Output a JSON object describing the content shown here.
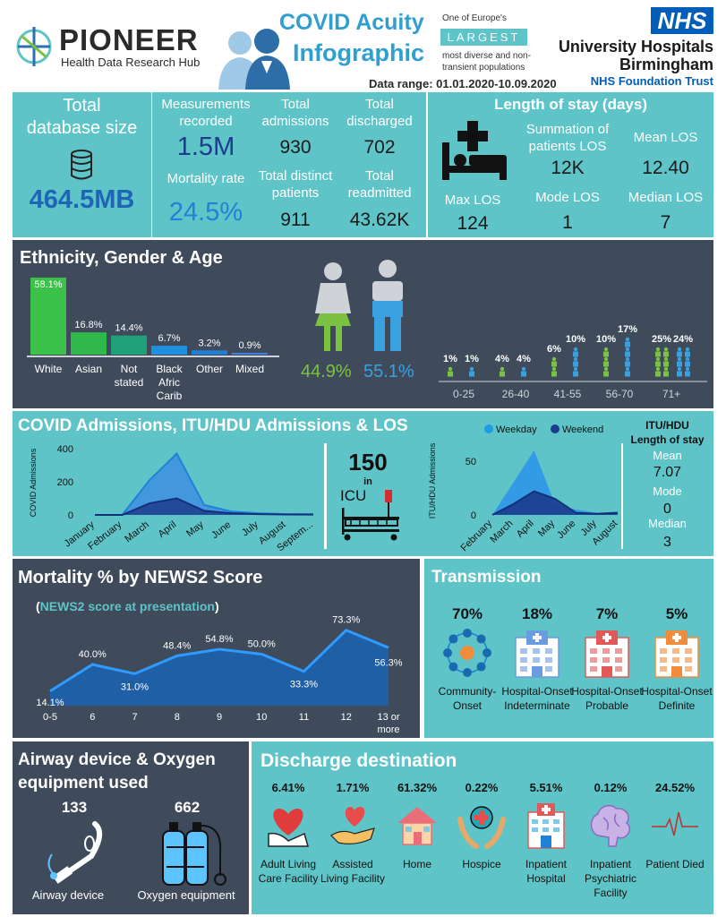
{
  "header": {
    "logo_name": "PIONEER",
    "logo_sub": "Health Data Research Hub",
    "title_line1": "COVID Acuity",
    "title_line2": "Infographic",
    "europe_line1": "One of Europe's",
    "europe_largest": "LARGEST",
    "europe_line2": "most diverse and non-",
    "europe_line3": "transient populations",
    "date_range": "Data range: 01.01.2020-10.09.2020",
    "nhs_badge": "NHS",
    "trust_line1": "University Hospitals",
    "trust_line2": "Birmingham",
    "trust_line3": "NHS Foundation Trust"
  },
  "database": {
    "label_line1": "Total",
    "label_line2": "database size",
    "size": "464.5MB"
  },
  "stats": {
    "measurements_label1": "Measurements",
    "measurements_label2": "recorded",
    "measurements_value": "1.5M",
    "mortality_label": "Mortality rate",
    "mortality_value": "24.5%",
    "admissions_label1": "Total",
    "admissions_label2": "admissions",
    "admissions_value": "930",
    "discharged_label1": "Total",
    "discharged_label2": "discharged",
    "discharged_value": "702",
    "distinct_label1": "Total distinct",
    "distinct_label2": "patients",
    "distinct_value": "911",
    "readmitted_label1": "Total",
    "readmitted_label2": "readmitted",
    "readmitted_value": "43.62K"
  },
  "los": {
    "title": "Length of stay (days)",
    "sum_label1": "Summation of",
    "sum_label2": "patients LOS",
    "sum_value": "12K",
    "mean_label": "Mean LOS",
    "mean_value": "12.40",
    "max_label": "Max LOS",
    "max_value": "124",
    "mode_label": "Mode LOS",
    "mode_value": "1",
    "median_label": "Median LOS",
    "median_value": "7"
  },
  "demographics": {
    "title": "Ethnicity, Gender & Age",
    "ethnicity": [
      {
        "label": "White",
        "pct": "58.1%",
        "value": 58.1,
        "color": "#3cc24a"
      },
      {
        "label": "Asian",
        "pct": "16.8%",
        "value": 16.8,
        "color": "#2fb94a"
      },
      {
        "label": "Not stated",
        "pct": "14.4%",
        "value": 14.4,
        "color": "#1fa27a"
      },
      {
        "label": "Black Afric Carib",
        "pct": "6.7%",
        "value": 6.7,
        "color": "#1f8fe0"
      },
      {
        "label": "Other",
        "pct": "3.2%",
        "value": 3.2,
        "color": "#1f7fd6"
      },
      {
        "label": "Mixed",
        "pct": "0.9%",
        "value": 0.9,
        "color": "#3d7fe0"
      }
    ],
    "female_pct": "44.9%",
    "male_pct": "55.1%",
    "age_groups": [
      {
        "label": "0-25",
        "female": "1%",
        "male": "1%",
        "f": 1,
        "m": 1
      },
      {
        "label": "26-40",
        "female": "4%",
        "male": "4%",
        "f": 4,
        "m": 4
      },
      {
        "label": "41-55",
        "female": "6%",
        "male": "10%",
        "f": 6,
        "m": 10
      },
      {
        "label": "56-70",
        "female": "10%",
        "male": "17%",
        "f": 10,
        "m": 17
      },
      {
        "label": "71+",
        "female": "25%",
        "male": "24%",
        "f": 25,
        "m": 24
      }
    ]
  },
  "admissions": {
    "title": "COVID Admissions,  ITU/HDU Admissions & LOS",
    "ylabel": "COVID Admissions",
    "months": [
      "January",
      "February",
      "March",
      "April",
      "May",
      "June",
      "July",
      "August",
      "Septem..."
    ],
    "yticks": [
      "0",
      "200",
      "400"
    ],
    "weekday": [
      0,
      0,
      210,
      370,
      60,
      20,
      10,
      5,
      5
    ],
    "weekend": [
      0,
      0,
      70,
      100,
      25,
      10,
      5,
      3,
      2
    ],
    "icu_number": "150",
    "icu_in": "in",
    "icu_label": "ICU",
    "itu_ylabel": "ITU/HDU Admissions",
    "itu_months": [
      "February",
      "March",
      "April",
      "May",
      "June",
      "July",
      "August"
    ],
    "itu_yticks": [
      "0",
      "50"
    ],
    "itu_weekday": [
      0,
      30,
      60,
      10,
      5,
      2,
      3
    ],
    "itu_weekend": [
      0,
      10,
      22,
      15,
      2,
      1,
      2
    ],
    "legend_weekday": "Weekday",
    "legend_weekend": "Weekend",
    "itu_los_title1": "ITU/HDU",
    "itu_los_title2": "Length of stay",
    "itu_mean_label": "Mean",
    "itu_mean_value": "7.07",
    "itu_mode_label": "Mode",
    "itu_mode_value": "0",
    "itu_median_label": "Median",
    "itu_median_value": "3"
  },
  "mortality_news2": {
    "title": "Mortality % by NEWS2 Score",
    "subtitle_open": "(",
    "subtitle": "NEWS2 score at presentation",
    "subtitle_close": ")",
    "points": [
      {
        "x": "0-5",
        "value": 14.1,
        "label": "14.1%"
      },
      {
        "x": "6",
        "value": 40.0,
        "label": "40.0%"
      },
      {
        "x": "7",
        "value": 31.0,
        "label": "31.0%"
      },
      {
        "x": "8",
        "value": 48.4,
        "label": "48.4%"
      },
      {
        "x": "9",
        "value": 54.8,
        "label": "54.8%"
      },
      {
        "x": "10",
        "value": 50.0,
        "label": "50.0%"
      },
      {
        "x": "11",
        "value": 33.3,
        "label": "33.3%"
      },
      {
        "x": "12",
        "value": 73.3,
        "label": "73.3%"
      },
      {
        "x": "13 or more",
        "value": 56.3,
        "label": "56.3%"
      }
    ]
  },
  "transmission": {
    "title": "Transmission",
    "items": [
      {
        "pct": "70%",
        "label": "Community-Onset",
        "icon": "community-icon"
      },
      {
        "pct": "18%",
        "label": "Hospital-Onset Indeterminate",
        "icon": "hospital-blue-icon"
      },
      {
        "pct": "7%",
        "label": "Hospital-Onset Probable",
        "icon": "hospital-red-icon"
      },
      {
        "pct": "5%",
        "label": "Hospital-Onset Definite",
        "icon": "hospital-orange-icon"
      }
    ]
  },
  "airway": {
    "title1": "Airway device & Oxygen",
    "title2": "equipment used",
    "device_count": "133",
    "device_label": "Airway device",
    "oxygen_count": "662",
    "oxygen_label": "Oxygen equipment"
  },
  "discharge": {
    "title": "Discharge destination",
    "items": [
      {
        "pct": "6.41%",
        "label": "Adult Living Care Facility",
        "icon": "heart-hand-icon"
      },
      {
        "pct": "1.71%",
        "label": "Assisted Living Facility",
        "icon": "helping-hand-icon"
      },
      {
        "pct": "61.32%",
        "label": "Home",
        "icon": "home-icon"
      },
      {
        "pct": "0.22%",
        "label": "Hospice",
        "icon": "hospice-icon"
      },
      {
        "pct": "5.51%",
        "label": "Inpatient Hospital",
        "icon": "hospital-icon"
      },
      {
        "pct": "0.12%",
        "label": "Inpatient Psychiatric Facility",
        "icon": "brain-icon"
      },
      {
        "pct": "24.52%",
        "label": "Patient Died",
        "icon": "heartbeat-icon"
      }
    ]
  },
  "colors": {
    "teal": "#5ec4c8",
    "dark": "#3f4b5b",
    "navy": "#1c3c8c",
    "blue": "#1f82d6",
    "green": "#7cc242"
  }
}
